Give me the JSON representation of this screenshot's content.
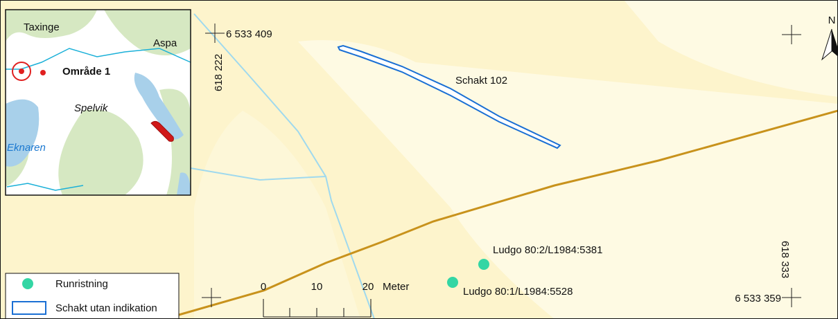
{
  "inset": {
    "places": [
      "Taxinge",
      "Aspa",
      "Område 1",
      "Spelvik",
      "Eknaren"
    ]
  },
  "map": {
    "coordinates": [
      "6 533 409",
      "618 222",
      "618 333",
      "6 533 359"
    ],
    "trench": "Schakt 102",
    "sites": [
      "Ludgo 80:2/L1984:5381",
      "Ludgo 80:1/L1984:5528"
    ],
    "north": "N"
  },
  "scale": {
    "ticks": [
      "0",
      "10",
      "20"
    ],
    "unit": "Meter"
  },
  "legend": [
    "Runristning",
    "Schakt utan indikation"
  ]
}
